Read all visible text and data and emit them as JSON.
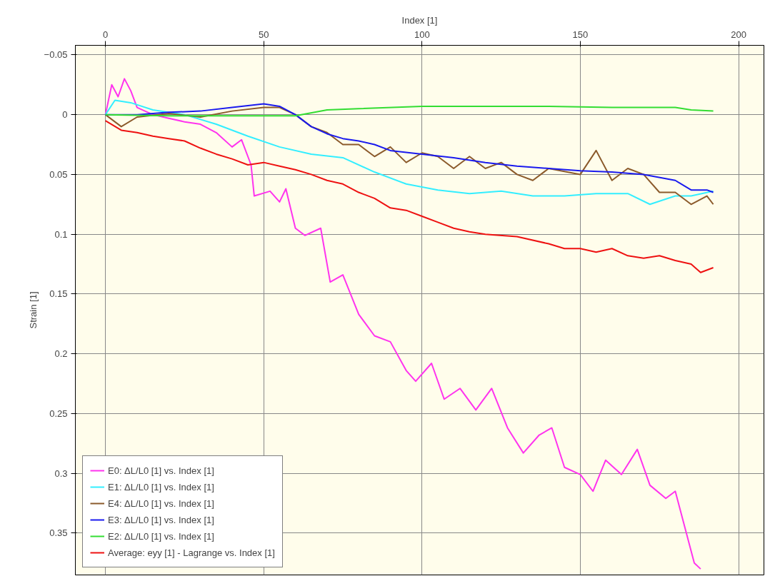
{
  "chart_data": {
    "type": "line",
    "xlabel": "Index [1]",
    "ylabel": "Strain [1]",
    "xlim": [
      -9.5,
      208
    ],
    "ylim": [
      0.385,
      -0.058
    ],
    "xticks": [
      0,
      50,
      100,
      150,
      200
    ],
    "yticks": [
      -0.05,
      0,
      0.05,
      0.1,
      0.15,
      0.2,
      0.25,
      0.3,
      0.35
    ],
    "grid": true,
    "legend": "bottom left",
    "marker": "none",
    "line_style": "solid",
    "series": [
      {
        "name": "E0: ΔL/L0 [1] vs. Index [1]",
        "color": "#ff33ee",
        "x": [
          0,
          2,
          4,
          6,
          8,
          10,
          15,
          20,
          25,
          30,
          35,
          40,
          43,
          46,
          47,
          52,
          55,
          57,
          60,
          63,
          68,
          71,
          75,
          80,
          85,
          90,
          95,
          98,
          103,
          107,
          112,
          117,
          122,
          127,
          132,
          137,
          141,
          145,
          150,
          154,
          158,
          163,
          168,
          172,
          177,
          180,
          183,
          186,
          188
        ],
        "values": [
          0,
          -0.025,
          -0.015,
          -0.03,
          -0.02,
          -0.006,
          0,
          0.003,
          0.006,
          0.008,
          0.015,
          0.027,
          0.021,
          0.042,
          0.068,
          0.064,
          0.073,
          0.062,
          0.095,
          0.101,
          0.095,
          0.14,
          0.134,
          0.167,
          0.185,
          0.19,
          0.214,
          0.223,
          0.208,
          0.238,
          0.229,
          0.247,
          0.229,
          0.262,
          0.283,
          0.268,
          0.262,
          0.295,
          0.301,
          0.315,
          0.289,
          0.301,
          0.28,
          0.31,
          0.321,
          0.315,
          0.345,
          0.375,
          0.38
        ]
      },
      {
        "name": "E1: ΔL/L0 [1] vs. Index [1]",
        "color": "#33eeff",
        "x": [
          0,
          3,
          8,
          15,
          25,
          35,
          45,
          55,
          65,
          75,
          85,
          95,
          105,
          115,
          125,
          135,
          145,
          155,
          165,
          172,
          180,
          185,
          192
        ],
        "values": [
          0,
          -0.012,
          -0.01,
          -0.004,
          0,
          0.008,
          0.018,
          0.027,
          0.033,
          0.036,
          0.048,
          0.058,
          0.063,
          0.066,
          0.064,
          0.068,
          0.068,
          0.066,
          0.066,
          0.075,
          0.068,
          0.068,
          0.064
        ]
      },
      {
        "name": "E4: ΔL/L0 [1] vs. Index [1]",
        "color": "#8b5a2b",
        "x": [
          0,
          5,
          10,
          20,
          30,
          40,
          50,
          55,
          60,
          65,
          70,
          75,
          80,
          85,
          90,
          95,
          100,
          105,
          110,
          115,
          120,
          125,
          130,
          135,
          140,
          150,
          155,
          160,
          165,
          170,
          175,
          180,
          185,
          190,
          192
        ],
        "values": [
          0,
          0.01,
          0.002,
          -0.001,
          0.002,
          -0.003,
          -0.006,
          -0.006,
          0,
          0.01,
          0.015,
          0.025,
          0.025,
          0.035,
          0.027,
          0.04,
          0.032,
          0.035,
          0.045,
          0.035,
          0.045,
          0.04,
          0.05,
          0.055,
          0.045,
          0.05,
          0.03,
          0.055,
          0.045,
          0.05,
          0.065,
          0.065,
          0.075,
          0.068,
          0.075
        ]
      },
      {
        "name": "E3: ΔL/L0 [1] vs. Index [1]",
        "color": "#1a1aee",
        "x": [
          0,
          10,
          20,
          30,
          40,
          50,
          55,
          60,
          65,
          70,
          75,
          80,
          85,
          90,
          100,
          110,
          120,
          130,
          140,
          150,
          160,
          170,
          180,
          185,
          190,
          192
        ],
        "values": [
          0,
          0,
          -0.002,
          -0.003,
          -0.006,
          -0.009,
          -0.007,
          0,
          0.01,
          0.016,
          0.02,
          0.022,
          0.025,
          0.03,
          0.033,
          0.036,
          0.04,
          0.043,
          0.045,
          0.047,
          0.048,
          0.05,
          0.055,
          0.063,
          0.063,
          0.065
        ]
      },
      {
        "name": "E2: ΔL/L0 [1] vs. Index [1]",
        "color": "#33dd33",
        "x": [
          0,
          20,
          40,
          60,
          70,
          80,
          100,
          120,
          140,
          160,
          180,
          185,
          192
        ],
        "values": [
          0,
          0.001,
          0.001,
          0.001,
          -0.004,
          -0.005,
          -0.007,
          -0.007,
          -0.007,
          -0.006,
          -0.006,
          -0.004,
          -0.003
        ]
      },
      {
        "name": "Average: eyy [1] - Lagrange vs. Index [1]",
        "color": "#ee1111",
        "x": [
          0,
          5,
          10,
          15,
          20,
          25,
          30,
          35,
          40,
          45,
          50,
          55,
          60,
          65,
          70,
          75,
          80,
          85,
          90,
          95,
          100,
          105,
          110,
          115,
          120,
          130,
          140,
          145,
          150,
          155,
          160,
          165,
          170,
          175,
          180,
          185,
          188,
          192
        ],
        "values": [
          0.005,
          0.013,
          0.015,
          0.018,
          0.02,
          0.022,
          0.028,
          0.033,
          0.037,
          0.042,
          0.04,
          0.043,
          0.046,
          0.05,
          0.055,
          0.058,
          0.065,
          0.07,
          0.078,
          0.08,
          0.085,
          0.09,
          0.095,
          0.098,
          0.1,
          0.102,
          0.108,
          0.112,
          0.112,
          0.115,
          0.112,
          0.118,
          0.12,
          0.118,
          0.122,
          0.125,
          0.132,
          0.128
        ]
      }
    ]
  }
}
